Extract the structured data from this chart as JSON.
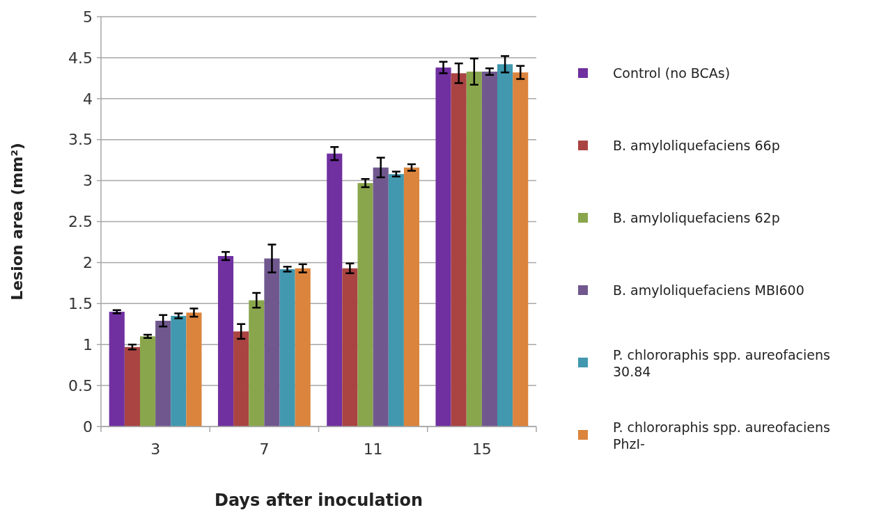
{
  "chart_data": {
    "type": "bar",
    "xlabel": "Days after inoculation",
    "ylabel": "Lesion area (mm²)",
    "categories": [
      "3",
      "7",
      "11",
      "15"
    ],
    "ylim": [
      0,
      5
    ],
    "yticks": [
      0,
      0.5,
      1,
      1.5,
      2,
      2.5,
      3,
      3.5,
      4,
      4.5,
      5
    ],
    "grid": "y",
    "legend": "right",
    "series": [
      {
        "name": "Control (no BCAs)",
        "color": "#7030a0",
        "values": [
          1.4,
          2.08,
          3.33,
          4.38
        ],
        "errors": [
          0.02,
          0.05,
          0.08,
          0.07
        ]
      },
      {
        "name": "B. amyloliquefaciens 66p",
        "color": "#a94442",
        "values": [
          0.97,
          1.16,
          1.93,
          4.31
        ],
        "errors": [
          0.03,
          0.09,
          0.06,
          0.12
        ]
      },
      {
        "name": "B. amyloliquefaciens 62p",
        "color": "#8aa64c",
        "values": [
          1.1,
          1.54,
          2.97,
          4.33
        ],
        "errors": [
          0.02,
          0.09,
          0.05,
          0.16
        ]
      },
      {
        "name": "B. amyloliquefaciens MBI600",
        "color": "#70588f",
        "values": [
          1.29,
          2.05,
          3.16,
          4.33
        ],
        "errors": [
          0.07,
          0.17,
          0.12,
          0.04
        ]
      },
      {
        "name": "P. chlororaphis spp. aureofaciens 30.84",
        "color": "#4198af",
        "values": [
          1.35,
          1.92,
          3.08,
          4.42
        ],
        "errors": [
          0.03,
          0.03,
          0.03,
          0.1
        ]
      },
      {
        "name": "P. chlororaphis spp. aureofaciens PhzI-",
        "color": "#db843d",
        "values": [
          1.39,
          1.93,
          3.16,
          4.32
        ],
        "errors": [
          0.05,
          0.05,
          0.04,
          0.08
        ]
      }
    ]
  }
}
